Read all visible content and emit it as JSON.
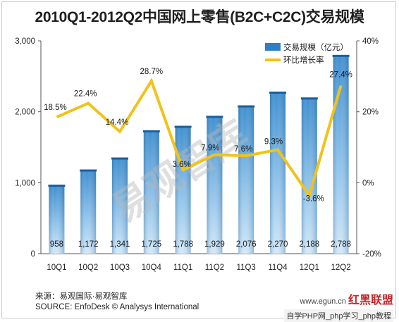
{
  "chart_data": {
    "type": "bar+line",
    "title": "2010Q1-2012Q2中国网上零售(B2C+C2C)交易规模",
    "categories": [
      "10Q1",
      "10Q2",
      "10Q3",
      "10Q4",
      "11Q1",
      "11Q2",
      "11Q3",
      "11Q4",
      "12Q1",
      "12Q2"
    ],
    "series": [
      {
        "name": "交易规模（亿元）",
        "type": "bar",
        "axis": "left",
        "values": [
          958,
          1172,
          1341,
          1725,
          1788,
          1929,
          2076,
          2270,
          2188,
          2788
        ],
        "labels": [
          "958",
          "1,172",
          "1,341",
          "1,725",
          "1,788",
          "1,929",
          "2,076",
          "2,270",
          "2,188",
          "2,788"
        ]
      },
      {
        "name": "环比增长率",
        "type": "line",
        "axis": "right",
        "values": [
          18.5,
          22.4,
          14.4,
          28.7,
          3.6,
          7.9,
          7.6,
          9.3,
          -3.6,
          27.4
        ],
        "labels": [
          "18.5%",
          "22.4%",
          "14.4%",
          "28.7%",
          "3.6%",
          "7.9%",
          "7.6%",
          "9.3%",
          "-3.6%",
          "27.4%"
        ]
      }
    ],
    "left_axis": {
      "ylim": [
        0,
        3000
      ],
      "ticks": [
        "0",
        "1,000",
        "2,000",
        "3,000"
      ],
      "tick_values": [
        0,
        1000,
        2000,
        3000
      ]
    },
    "right_axis": {
      "ylim": [
        -20,
        40
      ],
      "ticks": [
        "-20%",
        "0%",
        "20%",
        "40%"
      ],
      "tick_values": [
        -20,
        0,
        20,
        40
      ]
    },
    "grid": false,
    "legend": "top-right",
    "colors": {
      "bar_top": "#4a9ad6",
      "bar_bottom": "#1a5f9e",
      "line": "#f2c21b"
    }
  },
  "watermark": "易观智库",
  "source_cn": "来源：易观国际·易观智库",
  "source_en": "SOURCE: EnfoDesk © Analysys International",
  "corner_site": "www.egun.cn",
  "corner_logo": "红黑联盟",
  "corner_line2": "自学PHP网_php学习_php教程"
}
